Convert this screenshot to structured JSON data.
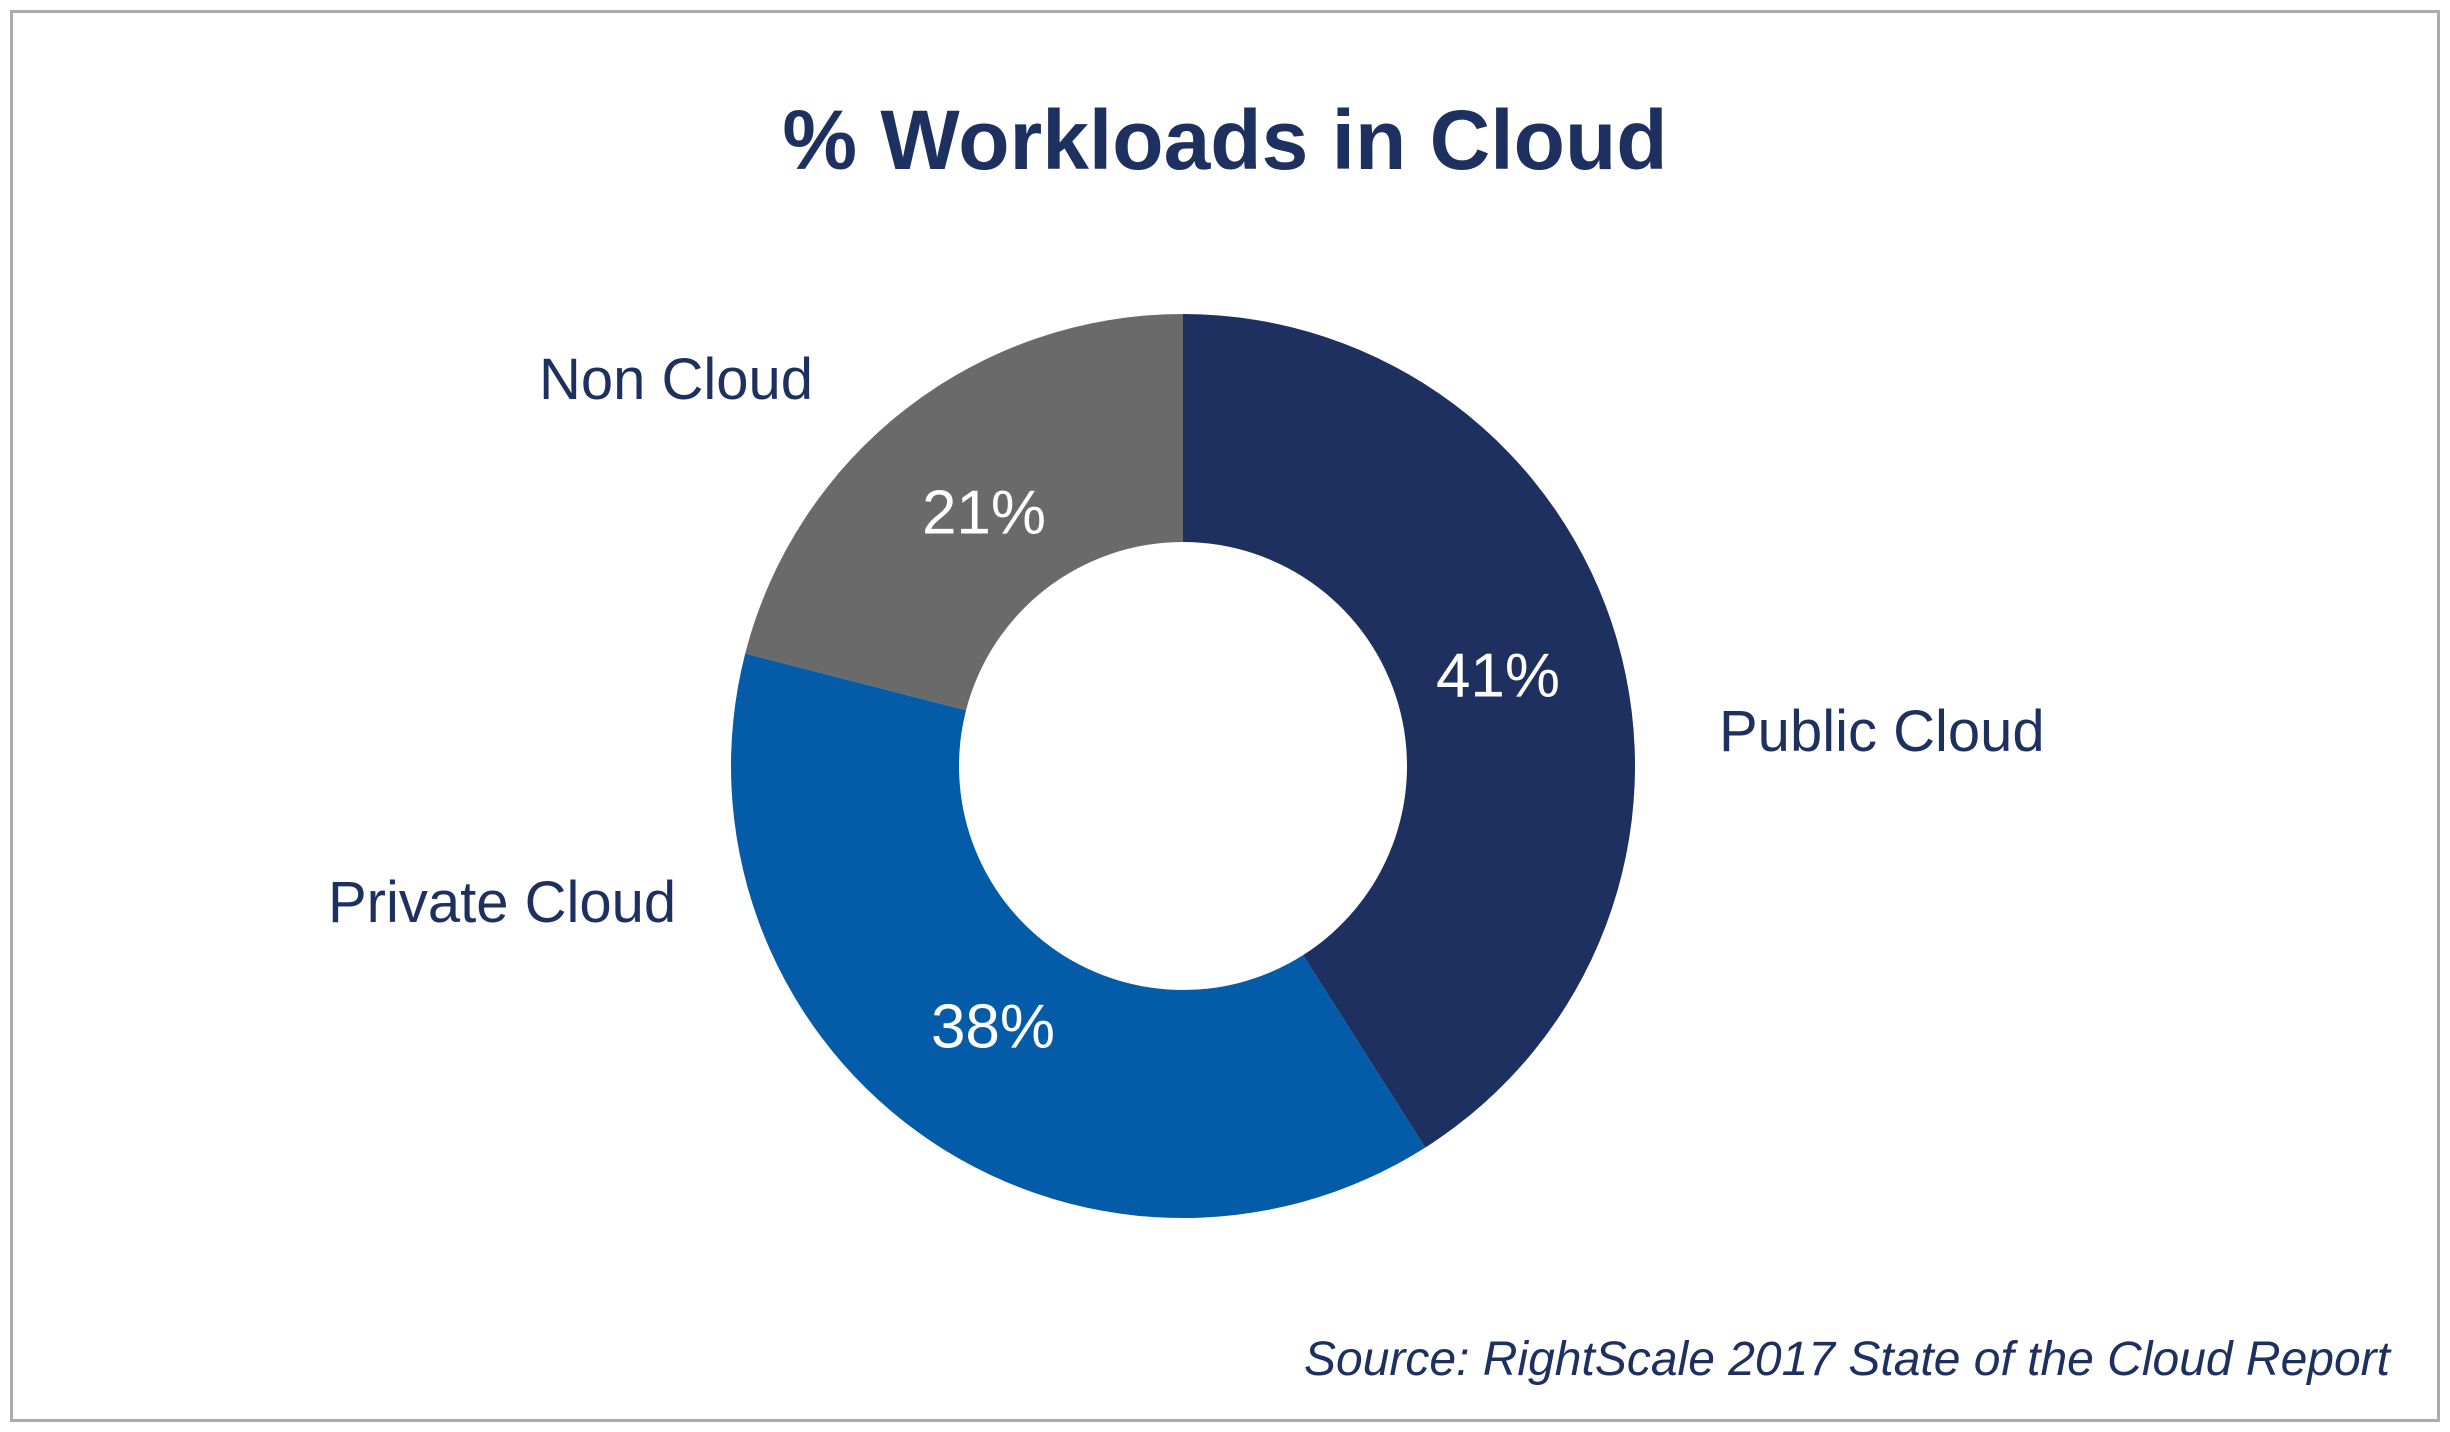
{
  "title": "% Workloads in Cloud",
  "source": "Source: RightScale 2017 State of the Cloud Report",
  "colors": {
    "navy": "#1e3060",
    "blue": "#045ca8",
    "gray": "#6a6a6a",
    "text": "#1e3060",
    "value_label_text": "#ffffff",
    "frame_border": "#a9abae",
    "background": "#ffffff"
  },
  "chart_data": {
    "type": "pie",
    "subtype": "donut",
    "title": "% Workloads in Cloud",
    "categories": [
      "Public Cloud",
      "Private Cloud",
      "Non Cloud"
    ],
    "values": [
      41,
      38,
      21
    ],
    "unit": "%",
    "value_labels": [
      "41%",
      "38%",
      "21%"
    ],
    "colors": [
      "#1e3060",
      "#045ca8",
      "#6a6a6a"
    ],
    "start_angle_deg": 0,
    "direction": "clockwise",
    "inner_radius_ratio": 0.495,
    "legend_position": "none",
    "labels_placement": "outside-categories-inside-values",
    "source": "Source: RightScale 2017 State of the Cloud Report"
  }
}
